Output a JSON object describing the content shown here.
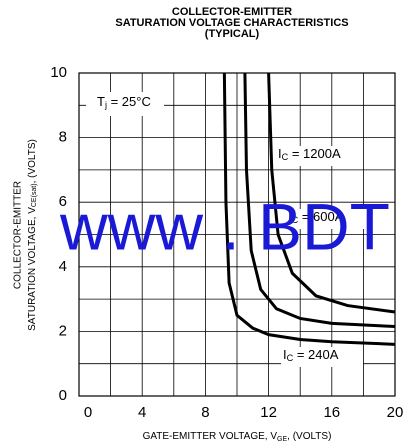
{
  "chart_data": {
    "type": "line",
    "title": [
      "COLLECTOR-EMITTER",
      "SATURATION VOLTAGE CHARACTERISTICS",
      "(TYPICAL)"
    ],
    "x_label": [
      "GATE-EMITTER VOLTAGE, V",
      "GE",
      ", (VOLTS)"
    ],
    "y_label": [
      "COLLECTOR-EMITTER",
      "SATURATION VOLTAGE, V",
      "CE(sat)",
      ", (VOLTS)"
    ],
    "annotation": [
      "T",
      "j",
      " = 25°C"
    ],
    "watermark": "www . BDT",
    "xlim": [
      0,
      20
    ],
    "xticks": [
      0,
      4,
      8,
      12,
      16,
      20
    ],
    "xgrid": [
      2,
      6,
      10,
      14,
      18
    ],
    "ylim": [
      0,
      10
    ],
    "yticks": [
      0,
      2,
      4,
      6,
      8,
      10
    ],
    "ygrid": [
      1,
      3,
      5,
      7,
      9
    ],
    "grid": true,
    "color": "#000000",
    "series": [
      {
        "label": [
          "I",
          "C",
          " = 1200A"
        ],
        "x": [
          12,
          12.2,
          12.6,
          13.5,
          15,
          17,
          20
        ],
        "values": [
          10,
          7,
          5,
          3.8,
          3.1,
          2.8,
          2.6
        ]
      },
      {
        "label": [
          "I",
          "C",
          " = 600A"
        ],
        "x": [
          10.5,
          10.6,
          10.9,
          11.5,
          12.5,
          14,
          16,
          20
        ],
        "values": [
          10,
          7,
          4.5,
          3.3,
          2.7,
          2.4,
          2.25,
          2.15
        ]
      },
      {
        "label": [
          "I",
          "C",
          " = 240A"
        ],
        "x": [
          9.2,
          9.3,
          9.5,
          10,
          11,
          12,
          14,
          16,
          20
        ],
        "values": [
          10,
          6,
          3.5,
          2.5,
          2.1,
          1.9,
          1.75,
          1.68,
          1.6
        ]
      }
    ]
  }
}
